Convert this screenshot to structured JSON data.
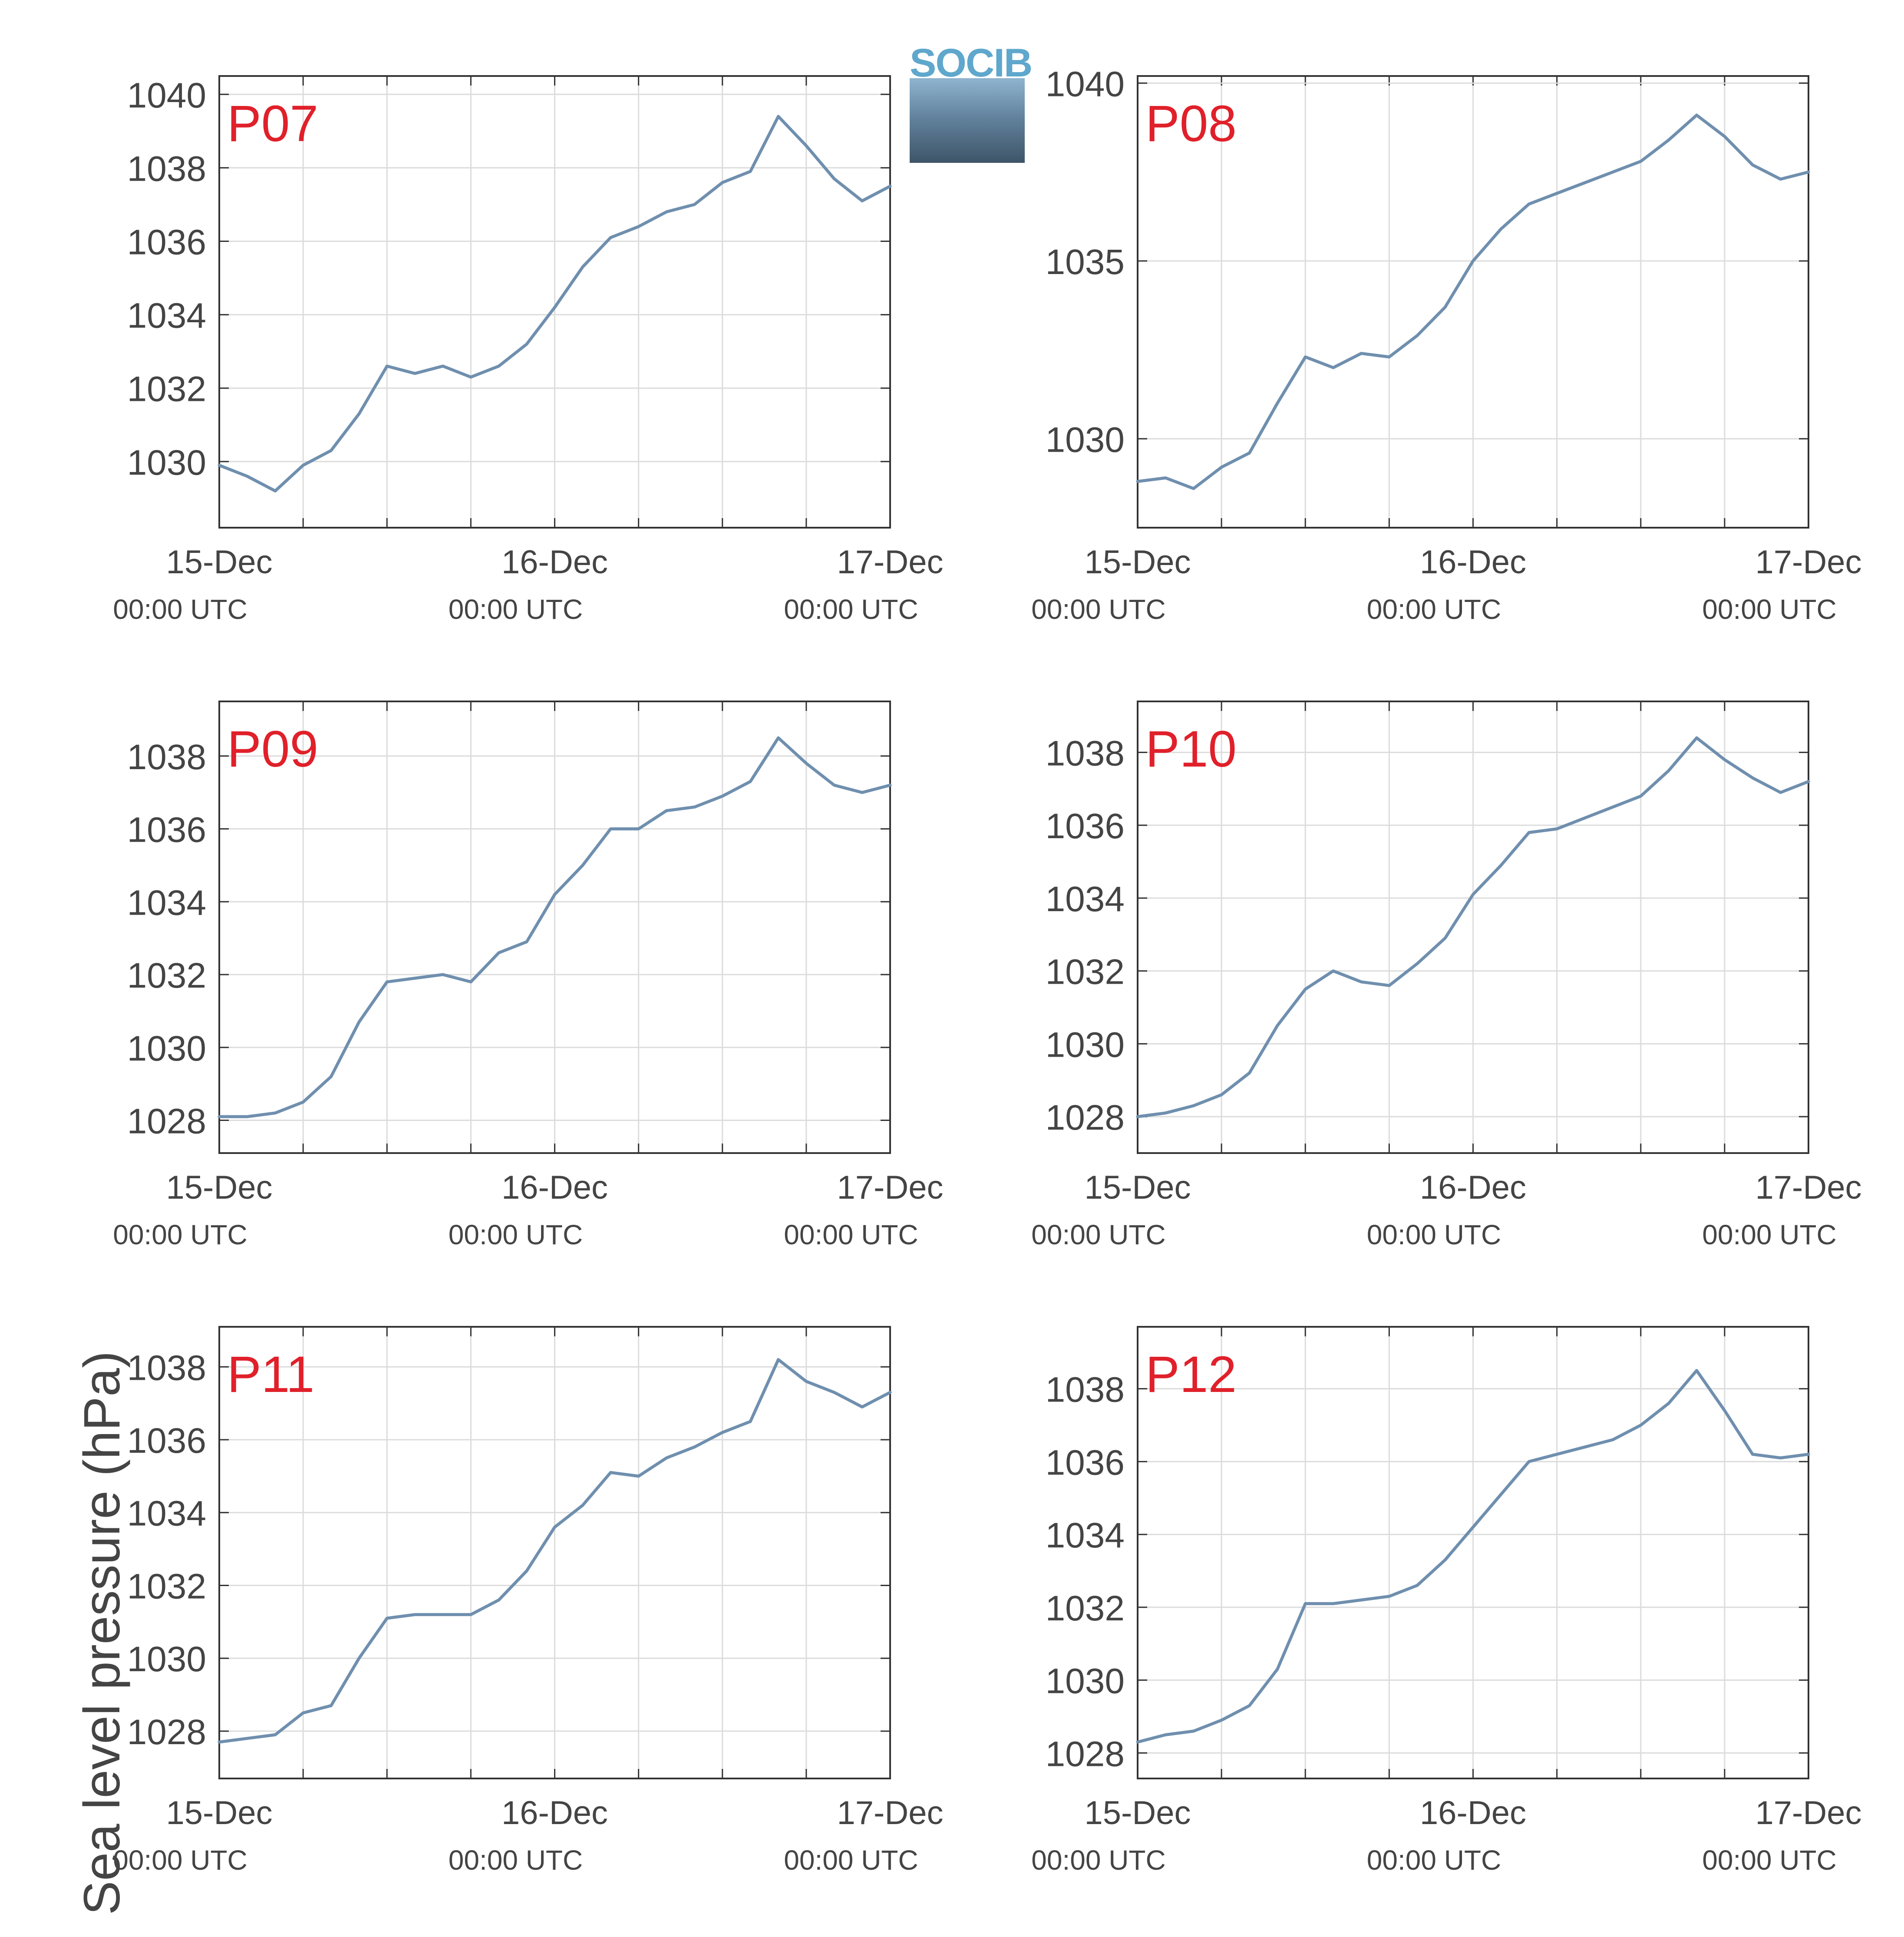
{
  "figure": {
    "ylabel": "Sea level pressure (hPa)",
    "logo_text": "SOCIB",
    "line_color": "#6f8fae",
    "panel_label_color": "#e0202a"
  },
  "chart_data": [
    {
      "type": "line",
      "panel_label": "P07",
      "x_ticks": [
        {
          "date": "15-Dec",
          "time": "00:00 UTC"
        },
        {
          "date": "16-Dec",
          "time": "00:00 UTC"
        },
        {
          "date": "17-Dec",
          "time": "00:00 UTC"
        }
      ],
      "xlim": [
        "2013-12-15T00:00",
        "2013-12-17T00:00"
      ],
      "ylim": [
        1028.2,
        1040.5
      ],
      "yticks": [
        1030,
        1032,
        1034,
        1036,
        1038,
        1040
      ],
      "grid": true,
      "series": [
        {
          "x": [
            0,
            2,
            4,
            6,
            8,
            10,
            12,
            14,
            16,
            18,
            20,
            22,
            24,
            26,
            28,
            30,
            32,
            34,
            36,
            38,
            40,
            42,
            44,
            46,
            48
          ],
          "y": [
            1029.9,
            1029.6,
            1029.2,
            1029.9,
            1030.3,
            1031.3,
            1032.6,
            1032.4,
            1032.6,
            1032.3,
            1032.6,
            1033.2,
            1034.2,
            1035.3,
            1036.1,
            1036.4,
            1036.8,
            1037.0,
            1037.6,
            1037.9,
            1039.4,
            1038.6,
            1037.7,
            1037.1,
            1037.5
          ]
        }
      ]
    },
    {
      "type": "line",
      "panel_label": "P08",
      "x_ticks": [
        {
          "date": "15-Dec",
          "time": "00:00 UTC"
        },
        {
          "date": "16-Dec",
          "time": "00:00 UTC"
        },
        {
          "date": "17-Dec",
          "time": "00:00 UTC"
        }
      ],
      "xlim": [
        "2013-12-15T00:00",
        "2013-12-17T00:00"
      ],
      "ylim": [
        1027.5,
        1040.2
      ],
      "yticks": [
        1030,
        1035,
        1040
      ],
      "grid": true,
      "series": [
        {
          "x": [
            0,
            2,
            4,
            6,
            8,
            10,
            12,
            14,
            16,
            18,
            20,
            22,
            24,
            26,
            28,
            30,
            32,
            34,
            36,
            38,
            40,
            42,
            44,
            46,
            48
          ],
          "y": [
            1028.8,
            1028.9,
            1028.6,
            1029.2,
            1029.6,
            1031.0,
            1032.3,
            1032.0,
            1032.4,
            1032.3,
            1032.9,
            1033.7,
            1035.0,
            1035.9,
            1036.6,
            1036.9,
            1037.2,
            1037.5,
            1037.8,
            1038.4,
            1039.1,
            1038.5,
            1037.7,
            1037.3,
            1037.5
          ]
        }
      ]
    },
    {
      "type": "line",
      "panel_label": "P09",
      "x_ticks": [
        {
          "date": "15-Dec",
          "time": "00:00 UTC"
        },
        {
          "date": "16-Dec",
          "time": "00:00 UTC"
        },
        {
          "date": "17-Dec",
          "time": "00:00 UTC"
        }
      ],
      "xlim": [
        "2013-12-15T00:00",
        "2013-12-17T00:00"
      ],
      "ylim": [
        1027.1,
        1039.5
      ],
      "yticks": [
        1028,
        1030,
        1032,
        1034,
        1036,
        1038
      ],
      "grid": true,
      "series": [
        {
          "x": [
            0,
            2,
            4,
            6,
            8,
            10,
            12,
            14,
            16,
            18,
            20,
            22,
            24,
            26,
            28,
            30,
            32,
            34,
            36,
            38,
            40,
            42,
            44,
            46,
            48
          ],
          "y": [
            1028.1,
            1028.1,
            1028.2,
            1028.5,
            1029.2,
            1030.7,
            1031.8,
            1031.9,
            1032.0,
            1031.8,
            1032.6,
            1032.9,
            1034.2,
            1035.0,
            1036.0,
            1036.0,
            1036.5,
            1036.6,
            1036.9,
            1037.3,
            1038.5,
            1037.8,
            1037.2,
            1037.0,
            1037.2
          ]
        }
      ]
    },
    {
      "type": "line",
      "panel_label": "P10",
      "x_ticks": [
        {
          "date": "15-Dec",
          "time": "00:00 UTC"
        },
        {
          "date": "16-Dec",
          "time": "00:00 UTC"
        },
        {
          "date": "17-Dec",
          "time": "00:00 UTC"
        }
      ],
      "xlim": [
        "2013-12-15T00:00",
        "2013-12-17T00:00"
      ],
      "ylim": [
        1027.0,
        1039.4
      ],
      "yticks": [
        1028,
        1030,
        1032,
        1034,
        1036,
        1038
      ],
      "grid": true,
      "series": [
        {
          "x": [
            0,
            2,
            4,
            6,
            8,
            10,
            12,
            14,
            16,
            18,
            20,
            22,
            24,
            26,
            28,
            30,
            32,
            34,
            36,
            38,
            40,
            42,
            44,
            46,
            48
          ],
          "y": [
            1028.0,
            1028.1,
            1028.3,
            1028.6,
            1029.2,
            1030.5,
            1031.5,
            1032.0,
            1031.7,
            1031.6,
            1032.2,
            1032.9,
            1034.1,
            1034.9,
            1035.8,
            1035.9,
            1036.2,
            1036.5,
            1036.8,
            1037.5,
            1038.4,
            1037.8,
            1037.3,
            1036.9,
            1037.2
          ]
        }
      ]
    },
    {
      "type": "line",
      "panel_label": "P11",
      "x_ticks": [
        {
          "date": "15-Dec",
          "time": "00:00 UTC"
        },
        {
          "date": "16-Dec",
          "time": "00:00 UTC"
        },
        {
          "date": "17-Dec",
          "time": "00:00 UTC"
        }
      ],
      "xlim": [
        "2013-12-15T00:00",
        "2013-12-17T00:00"
      ],
      "ylim": [
        1026.7,
        1039.1
      ],
      "yticks": [
        1028,
        1030,
        1032,
        1034,
        1036,
        1038
      ],
      "grid": true,
      "series": [
        {
          "x": [
            0,
            2,
            4,
            6,
            8,
            10,
            12,
            14,
            16,
            18,
            20,
            22,
            24,
            26,
            28,
            30,
            32,
            34,
            36,
            38,
            40,
            42,
            44,
            46,
            48
          ],
          "y": [
            1027.7,
            1027.8,
            1027.9,
            1028.5,
            1028.7,
            1030.0,
            1031.1,
            1031.2,
            1031.2,
            1031.2,
            1031.6,
            1032.4,
            1033.6,
            1034.2,
            1035.1,
            1035.0,
            1035.5,
            1035.8,
            1036.2,
            1036.5,
            1038.2,
            1037.6,
            1037.3,
            1036.9,
            1037.3
          ]
        }
      ]
    },
    {
      "type": "line",
      "panel_label": "P12",
      "x_ticks": [
        {
          "date": "15-Dec",
          "time": "00:00 UTC"
        },
        {
          "date": "16-Dec",
          "time": "00:00 UTC"
        },
        {
          "date": "17-Dec",
          "time": "00:00 UTC"
        }
      ],
      "xlim": [
        "2013-12-15T00:00",
        "2013-12-17T00:00"
      ],
      "ylim": [
        1027.3,
        1039.7
      ],
      "yticks": [
        1028,
        1030,
        1032,
        1034,
        1036,
        1038
      ],
      "grid": true,
      "series": [
        {
          "x": [
            0,
            2,
            4,
            6,
            8,
            10,
            12,
            14,
            16,
            18,
            20,
            22,
            24,
            26,
            28,
            30,
            32,
            34,
            36,
            38,
            40,
            42,
            44,
            46,
            48
          ],
          "y": [
            1028.3,
            1028.5,
            1028.6,
            1028.9,
            1029.3,
            1030.3,
            1032.1,
            1032.1,
            1032.2,
            1032.3,
            1032.6,
            1033.3,
            1034.2,
            1035.1,
            1036.0,
            1036.2,
            1036.4,
            1036.6,
            1037.0,
            1037.6,
            1038.5,
            1037.4,
            1036.2,
            1036.1,
            1036.2
          ]
        }
      ]
    }
  ]
}
